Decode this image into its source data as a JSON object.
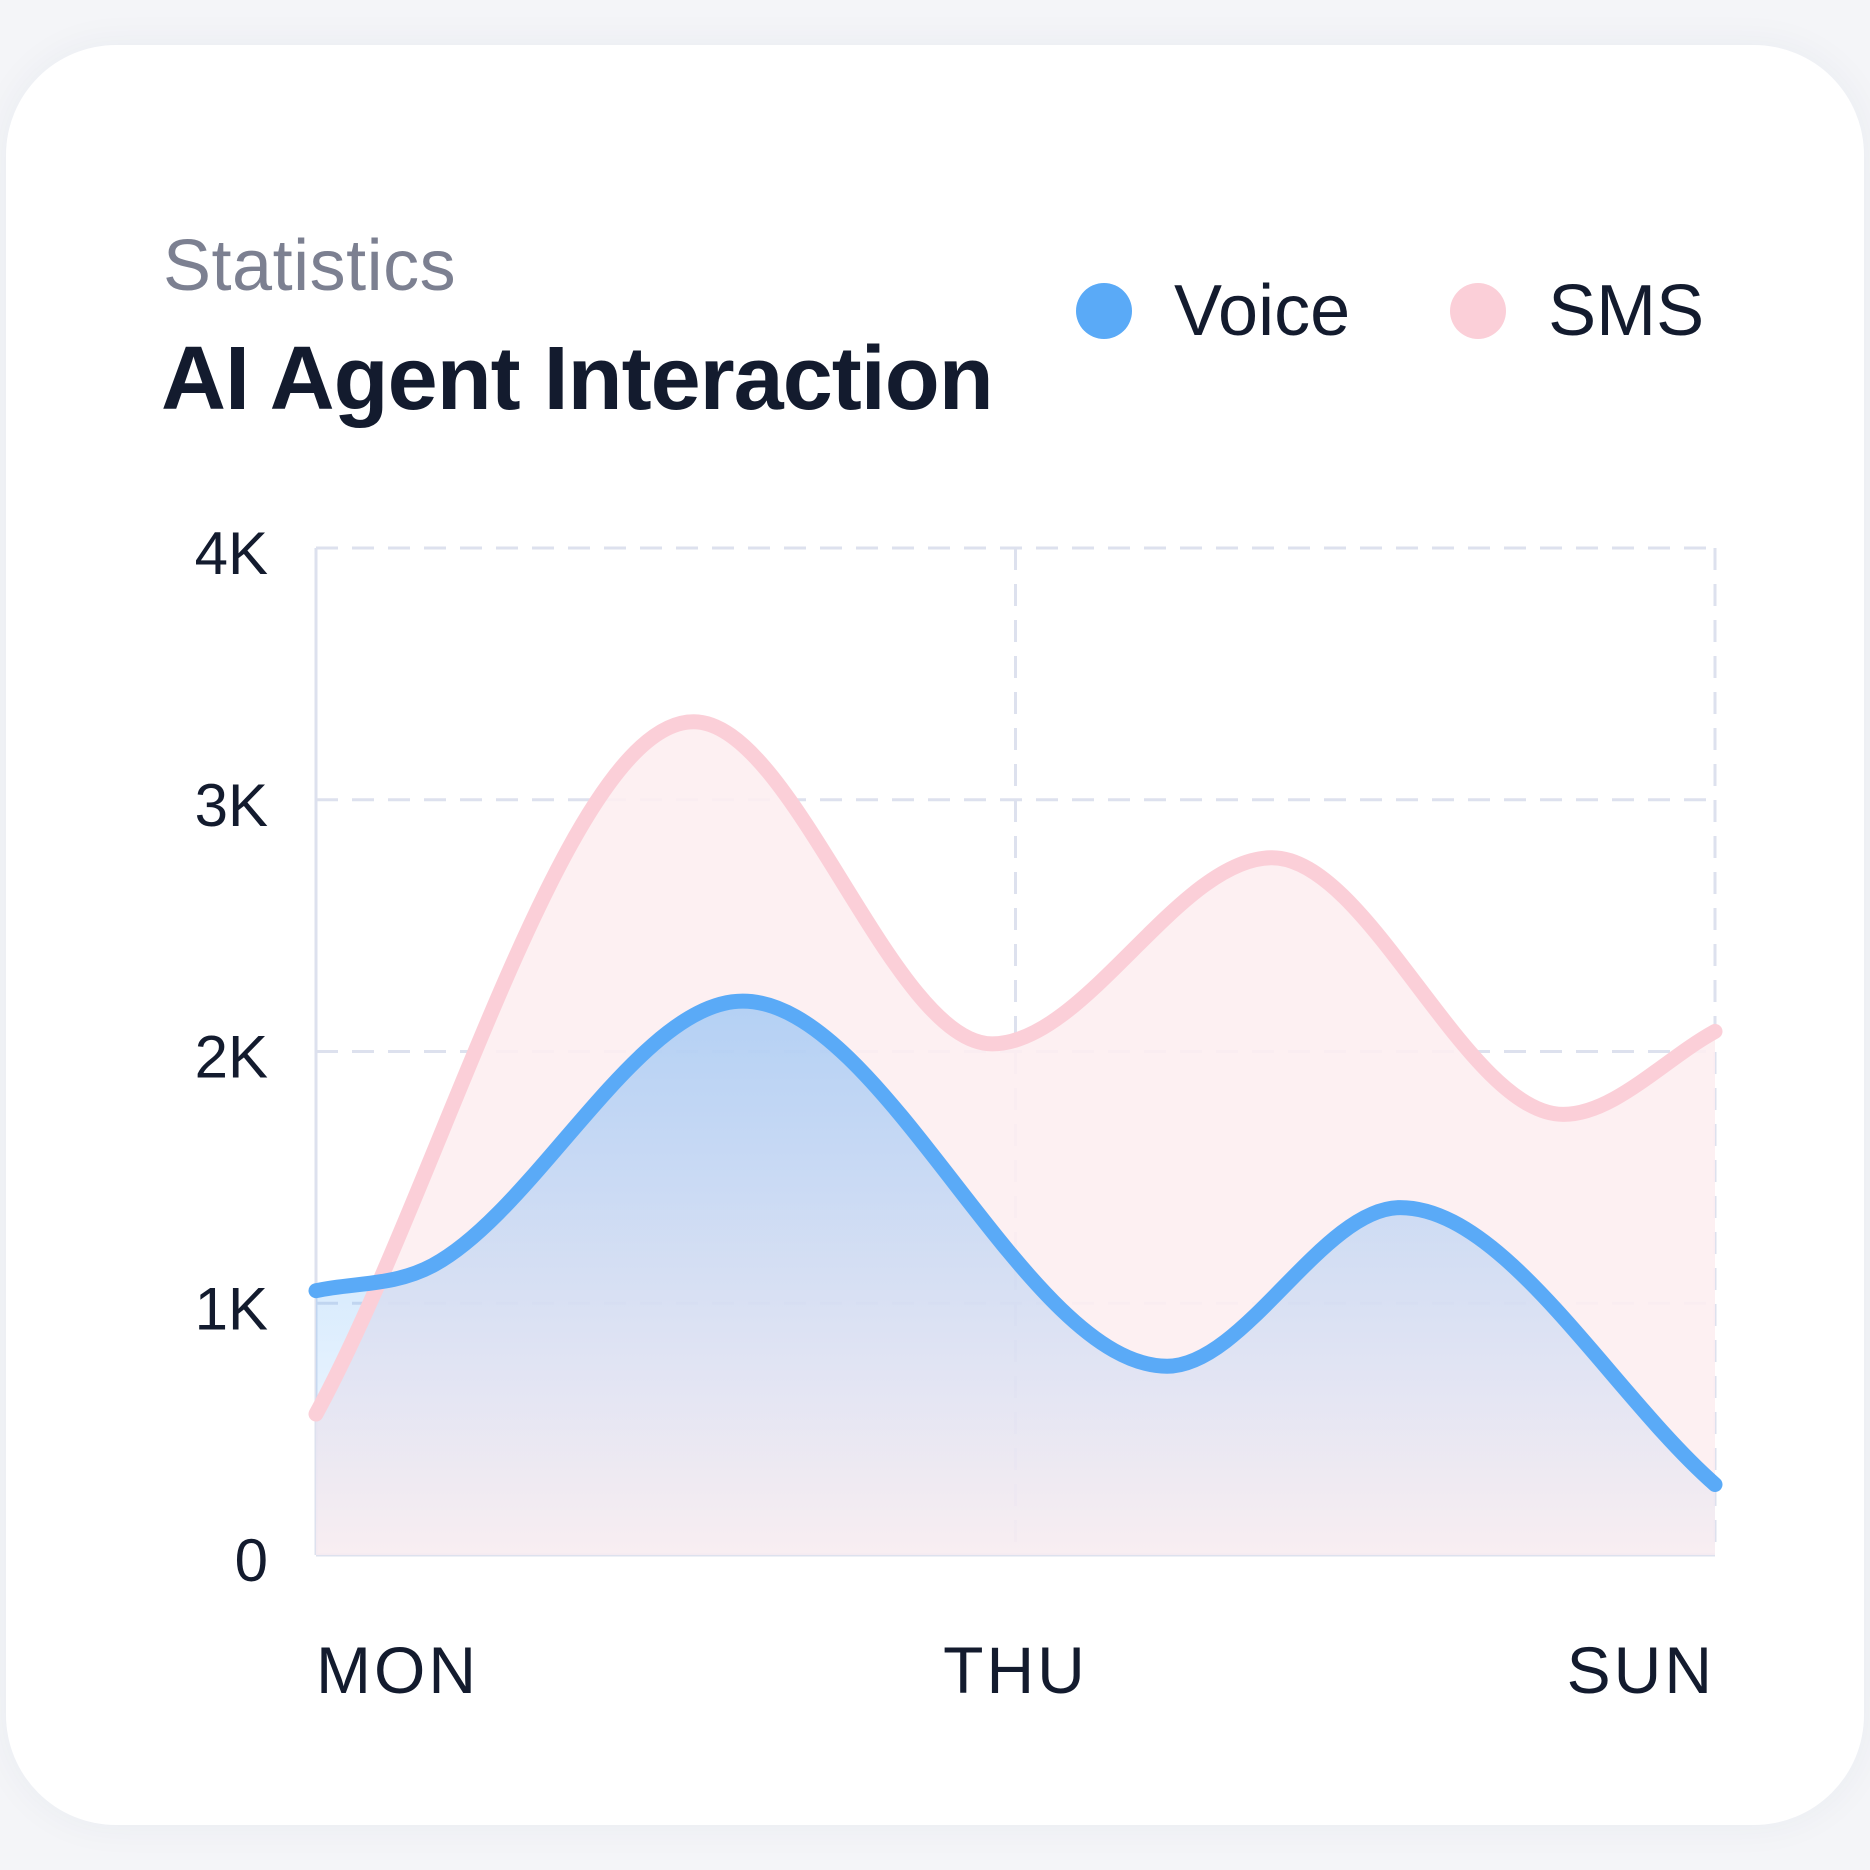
{
  "header": {
    "subtitle": "Statistics",
    "title": "AI Agent Interaction"
  },
  "legend": [
    {
      "label": "Voice",
      "color": "#5aaaf7"
    },
    {
      "label": "SMS",
      "color": "#fbcfd8"
    }
  ],
  "colors": {
    "voice_line": "#5aaaf7",
    "voice_fill": "#5aaaf7",
    "sms_line": "#fbcfd8",
    "sms_fill": "#fdeef1",
    "grid": "#dde1ee",
    "axis_text": "#131b2e"
  },
  "chart_data": {
    "type": "area",
    "title": "AI Agent Interaction",
    "subtitle": "Statistics",
    "xlabel": "",
    "ylabel": "",
    "x_range": [
      0,
      6
    ],
    "ylim": [
      0,
      4000
    ],
    "y_ticks": [
      {
        "value": 0,
        "label": "0"
      },
      {
        "value": 1000,
        "label": "1K"
      },
      {
        "value": 2000,
        "label": "2K"
      },
      {
        "value": 3000,
        "label": "3K"
      },
      {
        "value": 4000,
        "label": "4K"
      }
    ],
    "x_ticks": [
      {
        "value": 0,
        "label": "MON",
        "anchor": "start"
      },
      {
        "value": 3,
        "label": "THU",
        "anchor": "middle"
      },
      {
        "value": 6,
        "label": "SUN",
        "anchor": "end"
      }
    ],
    "grid": true,
    "legend_position": "top-right",
    "series": [
      {
        "name": "SMS",
        "smooth": true,
        "points": [
          [
            0,
            560
          ],
          [
            1.62,
            3310
          ],
          [
            2.9,
            2030
          ],
          [
            4.1,
            2770
          ],
          [
            5.35,
            1750
          ],
          [
            6,
            2080
          ]
        ]
      },
      {
        "name": "Voice",
        "smooth": true,
        "points": [
          [
            0,
            1050
          ],
          [
            0.5,
            1150
          ],
          [
            1.83,
            2200
          ],
          [
            3.65,
            750
          ],
          [
            4.65,
            1380
          ],
          [
            6,
            280
          ]
        ]
      }
    ]
  }
}
